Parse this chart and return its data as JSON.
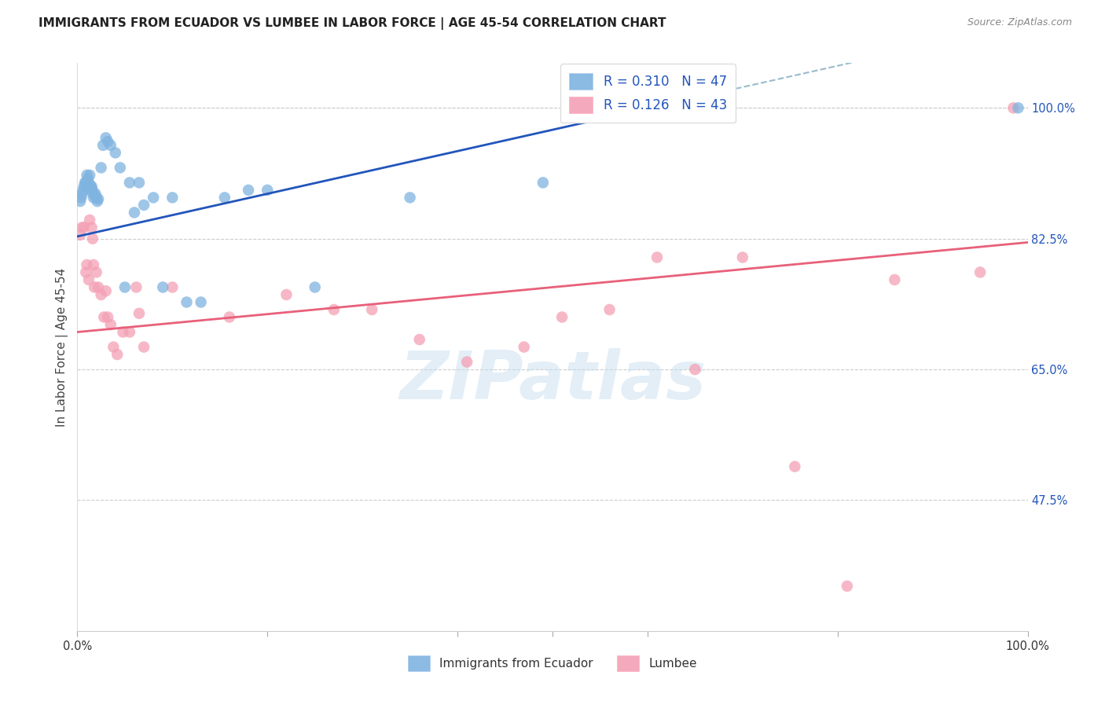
{
  "title": "IMMIGRANTS FROM ECUADOR VS LUMBEE IN LABOR FORCE | AGE 45-54 CORRELATION CHART",
  "source": "Source: ZipAtlas.com",
  "ylabel": "In Labor Force | Age 45-54",
  "xmin": 0.0,
  "xmax": 1.0,
  "ymin": 0.3,
  "ymax": 1.06,
  "y_tick_values": [
    0.475,
    0.65,
    0.825,
    1.0
  ],
  "y_tick_labels_right": [
    "47.5%",
    "65.0%",
    "82.5%",
    "100.0%"
  ],
  "x_tick_labels": [
    "0.0%",
    "100.0%"
  ],
  "gridline_color": "#cccccc",
  "background_color": "#ffffff",
  "blue_scatter_color": "#7fb3e0",
  "pink_scatter_color": "#f4a0b5",
  "blue_line_color": "#2255bb",
  "pink_line_color": "#e8607a",
  "dashed_line_color": "#99bbcc",
  "legend_blue_label": "R = 0.310   N = 47",
  "legend_pink_label": "R = 0.126   N = 43",
  "legend_bottom_blue": "Immigrants from Ecuador",
  "legend_bottom_pink": "Lumbee",
  "watermark_text": "ZIPatlas",
  "watermark_color": "#c8dff0",
  "watermark_alpha": 0.5,
  "blue_x": [
    0.003,
    0.004,
    0.005,
    0.006,
    0.007,
    0.008,
    0.009,
    0.01,
    0.01,
    0.011,
    0.012,
    0.012,
    0.013,
    0.014,
    0.015,
    0.015,
    0.016,
    0.017,
    0.018,
    0.019,
    0.02,
    0.021,
    0.022,
    0.025,
    0.027,
    0.03,
    0.032,
    0.035,
    0.04,
    0.045,
    0.05,
    0.055,
    0.06,
    0.065,
    0.07,
    0.08,
    0.09,
    0.1,
    0.115,
    0.13,
    0.155,
    0.18,
    0.2,
    0.25,
    0.35,
    0.49,
    0.99
  ],
  "blue_y": [
    0.875,
    0.88,
    0.885,
    0.89,
    0.895,
    0.9,
    0.9,
    0.895,
    0.91,
    0.905,
    0.9,
    0.895,
    0.91,
    0.895,
    0.895,
    0.888,
    0.89,
    0.88,
    0.883,
    0.885,
    0.88,
    0.875,
    0.878,
    0.92,
    0.95,
    0.96,
    0.955,
    0.95,
    0.94,
    0.92,
    0.76,
    0.9,
    0.86,
    0.9,
    0.87,
    0.88,
    0.76,
    0.88,
    0.74,
    0.74,
    0.88,
    0.89,
    0.89,
    0.76,
    0.88,
    0.9,
    1.0
  ],
  "pink_x": [
    0.003,
    0.005,
    0.007,
    0.009,
    0.01,
    0.012,
    0.013,
    0.015,
    0.016,
    0.017,
    0.018,
    0.02,
    0.022,
    0.025,
    0.028,
    0.03,
    0.032,
    0.035,
    0.038,
    0.042,
    0.048,
    0.055,
    0.062,
    0.065,
    0.07,
    0.1,
    0.16,
    0.22,
    0.27,
    0.31,
    0.36,
    0.41,
    0.47,
    0.51,
    0.56,
    0.61,
    0.65,
    0.7,
    0.755,
    0.81,
    0.86,
    0.95,
    0.985
  ],
  "pink_y": [
    0.83,
    0.84,
    0.84,
    0.78,
    0.79,
    0.77,
    0.85,
    0.84,
    0.825,
    0.79,
    0.76,
    0.78,
    0.76,
    0.75,
    0.72,
    0.755,
    0.72,
    0.71,
    0.68,
    0.67,
    0.7,
    0.7,
    0.76,
    0.725,
    0.68,
    0.76,
    0.72,
    0.75,
    0.73,
    0.73,
    0.69,
    0.66,
    0.68,
    0.72,
    0.73,
    0.8,
    0.65,
    0.8,
    0.52,
    0.36,
    0.77,
    0.78,
    1.0
  ],
  "blue_trend_x0": 0.0,
  "blue_trend_y0": 0.828,
  "blue_trend_x1": 0.55,
  "blue_trend_y1": 0.985,
  "pink_trend_x0": 0.0,
  "pink_trend_y0": 0.7,
  "pink_trend_x1": 1.0,
  "pink_trend_y1": 0.82
}
